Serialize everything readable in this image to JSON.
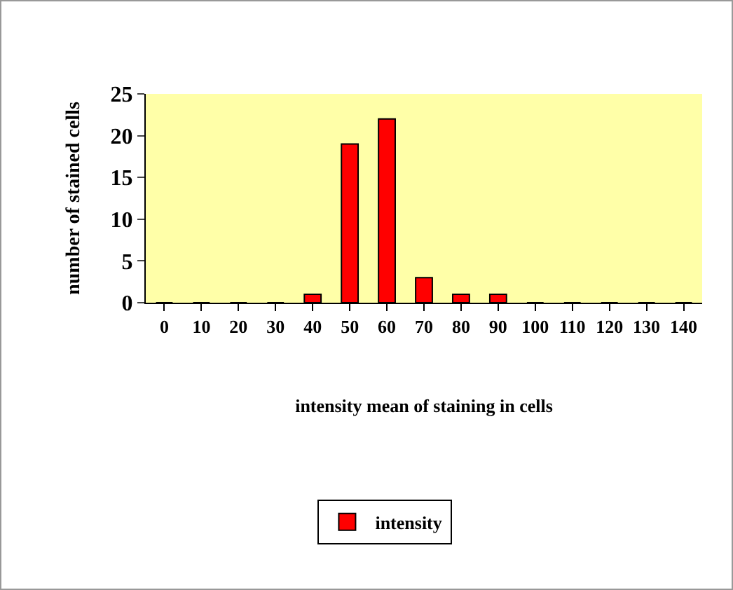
{
  "chart_data": {
    "type": "bar",
    "xlabel": "intensity mean of staining in cells",
    "ylabel": "number of stained cells",
    "categories": [
      "0",
      "10",
      "20",
      "30",
      "40",
      "50",
      "60",
      "70",
      "80",
      "90",
      "100",
      "110",
      "120",
      "130",
      "140"
    ],
    "series": [
      {
        "name": "intensity",
        "color": "#ff0000",
        "values": [
          0,
          0,
          0,
          0,
          1,
          19,
          22,
          3,
          1,
          1,
          0,
          0,
          0,
          0,
          0
        ]
      }
    ],
    "ylim": [
      0,
      25
    ],
    "yticks": [
      0,
      5,
      10,
      15,
      20,
      25
    ],
    "grid": false,
    "legend": "bottom"
  }
}
